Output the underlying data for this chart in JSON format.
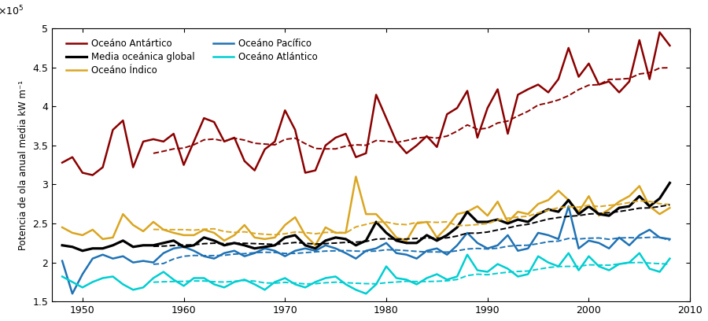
{
  "years": [
    1948,
    1949,
    1950,
    1951,
    1952,
    1953,
    1954,
    1955,
    1956,
    1957,
    1958,
    1959,
    1960,
    1961,
    1962,
    1963,
    1964,
    1965,
    1966,
    1967,
    1968,
    1969,
    1970,
    1971,
    1972,
    1973,
    1974,
    1975,
    1976,
    1977,
    1978,
    1979,
    1980,
    1981,
    1982,
    1983,
    1984,
    1985,
    1986,
    1987,
    1988,
    1989,
    1990,
    1991,
    1992,
    1993,
    1994,
    1995,
    1996,
    1997,
    1998,
    1999,
    2000,
    2001,
    2002,
    2003,
    2004,
    2005,
    2006,
    2007,
    2008
  ],
  "antartico": [
    3.28,
    3.35,
    3.15,
    3.12,
    3.22,
    3.7,
    3.82,
    3.22,
    3.55,
    3.58,
    3.55,
    3.65,
    3.25,
    3.55,
    3.85,
    3.8,
    3.55,
    3.6,
    3.3,
    3.18,
    3.45,
    3.55,
    3.95,
    3.7,
    3.15,
    3.18,
    3.5,
    3.6,
    3.65,
    3.35,
    3.4,
    4.15,
    3.85,
    3.55,
    3.4,
    3.5,
    3.62,
    3.48,
    3.9,
    3.98,
    4.2,
    3.6,
    3.98,
    4.22,
    3.65,
    4.15,
    4.22,
    4.28,
    4.18,
    4.35,
    4.75,
    4.38,
    4.55,
    4.28,
    4.32,
    4.18,
    4.32,
    4.85,
    4.35,
    4.95,
    4.78
  ],
  "indico": [
    2.45,
    2.38,
    2.35,
    2.42,
    2.3,
    2.32,
    2.62,
    2.48,
    2.4,
    2.52,
    2.42,
    2.38,
    2.35,
    2.35,
    2.42,
    2.38,
    2.28,
    2.35,
    2.48,
    2.32,
    2.3,
    2.32,
    2.48,
    2.58,
    2.35,
    2.22,
    2.45,
    2.38,
    2.38,
    3.1,
    2.62,
    2.62,
    2.48,
    2.32,
    2.28,
    2.5,
    2.52,
    2.32,
    2.45,
    2.62,
    2.65,
    2.72,
    2.6,
    2.78,
    2.52,
    2.65,
    2.62,
    2.75,
    2.8,
    2.92,
    2.8,
    2.65,
    2.85,
    2.6,
    2.68,
    2.78,
    2.85,
    2.98,
    2.72,
    2.62,
    2.7
  ],
  "pacifico": [
    2.02,
    1.6,
    1.85,
    2.05,
    2.1,
    2.05,
    2.08,
    2.0,
    2.02,
    2.0,
    2.12,
    2.18,
    2.2,
    2.15,
    2.08,
    2.05,
    2.12,
    2.15,
    2.08,
    2.12,
    2.18,
    2.15,
    2.08,
    2.15,
    2.18,
    2.15,
    2.22,
    2.18,
    2.12,
    2.05,
    2.15,
    2.18,
    2.25,
    2.12,
    2.1,
    2.05,
    2.15,
    2.18,
    2.1,
    2.22,
    2.38,
    2.25,
    2.18,
    2.22,
    2.35,
    2.15,
    2.18,
    2.38,
    2.35,
    2.3,
    2.72,
    2.18,
    2.28,
    2.25,
    2.18,
    2.32,
    2.22,
    2.35,
    2.42,
    2.32,
    2.3
  ],
  "atlantico": [
    1.82,
    1.75,
    1.68,
    1.75,
    1.8,
    1.82,
    1.72,
    1.65,
    1.68,
    1.8,
    1.88,
    1.78,
    1.7,
    1.8,
    1.8,
    1.72,
    1.68,
    1.75,
    1.78,
    1.72,
    1.65,
    1.75,
    1.8,
    1.72,
    1.68,
    1.75,
    1.8,
    1.82,
    1.72,
    1.65,
    1.6,
    1.72,
    1.95,
    1.8,
    1.78,
    1.72,
    1.8,
    1.85,
    1.78,
    1.82,
    2.1,
    1.9,
    1.88,
    1.98,
    1.92,
    1.82,
    1.85,
    2.08,
    2.0,
    1.95,
    2.12,
    1.9,
    2.08,
    1.95,
    1.9,
    1.98,
    2.0,
    2.12,
    1.92,
    1.88,
    2.05
  ],
  "global": [
    2.22,
    2.2,
    2.15,
    2.18,
    2.18,
    2.22,
    2.28,
    2.2,
    2.22,
    2.22,
    2.25,
    2.28,
    2.2,
    2.22,
    2.32,
    2.28,
    2.22,
    2.25,
    2.22,
    2.18,
    2.2,
    2.22,
    2.32,
    2.35,
    2.22,
    2.18,
    2.28,
    2.32,
    2.3,
    2.22,
    2.28,
    2.52,
    2.38,
    2.28,
    2.25,
    2.25,
    2.35,
    2.28,
    2.35,
    2.45,
    2.65,
    2.52,
    2.52,
    2.55,
    2.5,
    2.55,
    2.52,
    2.62,
    2.68,
    2.65,
    2.8,
    2.62,
    2.72,
    2.62,
    2.6,
    2.7,
    2.72,
    2.85,
    2.72,
    2.82,
    3.02
  ],
  "colors": {
    "antartico": "#8B0000",
    "indico": "#DAA520",
    "pacifico": "#1F72B4",
    "atlantico": "#00CED1",
    "global": "#000000"
  },
  "ylabel": "Potencia de ola anual media kW m⁻¹",
  "ylim": [
    1.5,
    5.0
  ],
  "yticks": [
    1.5,
    2.0,
    2.5,
    3.0,
    3.5,
    4.0,
    4.5,
    5.0
  ],
  "xlim": [
    1947,
    2010
  ],
  "xticks": [
    1950,
    1960,
    1970,
    1980,
    1990,
    2000,
    2010
  ],
  "legend": [
    {
      "label": "Oceáno Antártico",
      "color": "#8B0000"
    },
    {
      "label": "Oceáno Índico",
      "color": "#DAA520"
    },
    {
      "label": "Oceáno Pacífico",
      "color": "#1F72B4"
    },
    {
      "label": "Oceáno Atlántico",
      "color": "#00CED1"
    },
    {
      "label": "Media oceánica global",
      "color": "#000000"
    }
  ],
  "moving_avg_window": 10,
  "linewidth_main": 1.8,
  "linewidth_global": 2.3,
  "linewidth_avg": 1.4
}
